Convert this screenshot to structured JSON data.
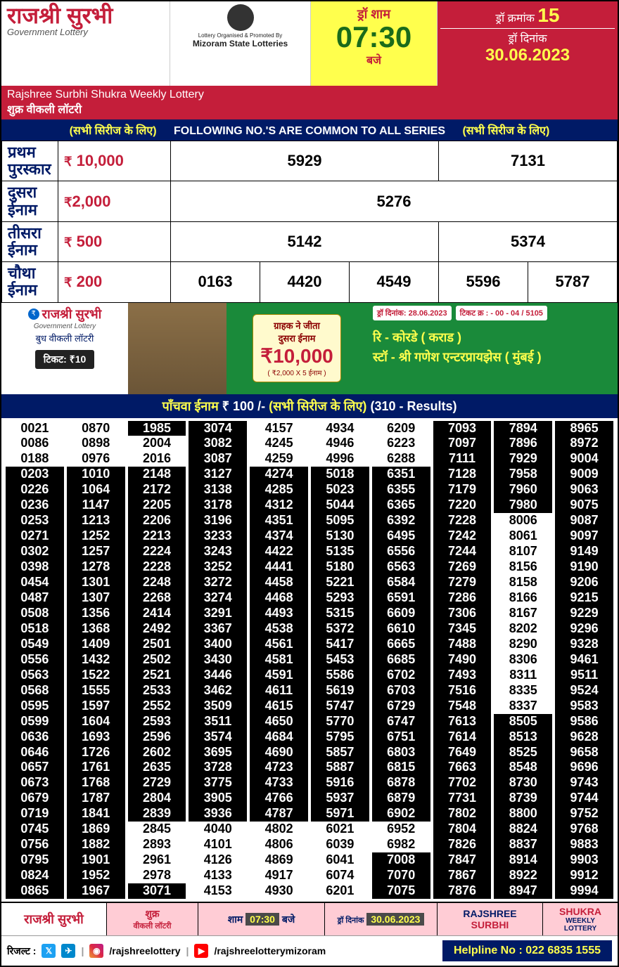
{
  "header": {
    "title_hindi": "राजश्री सुरभी",
    "gov_lottery": "Government Lottery",
    "sub_en": "Rajshree Surbhi Shukra Weekly Lottery",
    "sub_hi": "शुक्र वीकली लॉटरी",
    "org_text": "Lottery Organised & Promoted By",
    "org_name": "Mizoram State Lotteries",
    "draw_sham": "ड्रॉ शाम",
    "draw_time": "07:30",
    "baje": "बजे",
    "draw_no_label": "ड्रॉ क्रमांक",
    "draw_no": "15",
    "draw_date_label": "ड्रॉ दिनांक",
    "draw_date": "30.06.2023"
  },
  "common_bar": {
    "left": "(सभी सिरीज के लिए)",
    "mid": "FOLLOWING NO.'S ARE COMMON TO ALL SERIES",
    "right": "(सभी सिरीज के लिए)"
  },
  "prizes": {
    "first": {
      "label": "प्रथम पुरस्कार",
      "amt": "10,000",
      "nums": [
        "5929",
        "7131"
      ]
    },
    "second": {
      "label": "दुसरा ईनाम",
      "amt": "2,000",
      "nums": [
        "5276"
      ]
    },
    "third": {
      "label": "तीसरा ईनाम",
      "amt": "500",
      "nums": [
        "5142",
        "5374"
      ]
    },
    "fourth": {
      "label": "चौथा ईनाम",
      "amt": "200",
      "nums": [
        "0163",
        "4420",
        "4549",
        "5596",
        "5787"
      ]
    }
  },
  "winner": {
    "logo": "राजश्री सुरभी",
    "gov": "Government Lottery",
    "day": "बुध वीकली लॉटरी",
    "ticket": "टिकट: ₹10",
    "prize_t1": "ग्राहक ने जीता",
    "prize_t2": "दुसरा ईनाम",
    "prize_amt": "₹10,000",
    "prize_sub": "( ₹2,000 X 5 ईनाम )",
    "info_date": "ड्रॉ दिनांक: 28.06.2023",
    "info_ticket": "टिकट क्र : - 00 - 04 / 5105",
    "dealer1": "रि - कोरडे ( कराड )",
    "dealer2": "स्टॉ -   श्री गणेश एन्टरप्रायझेस ( मुंबई )"
  },
  "fifth": {
    "label": "पाँचवा ईनाम",
    "amt": "₹ 100 /-",
    "series": "(सभी सिरीज के लिए)",
    "count": "(310 - Results)",
    "columns": [
      [
        "0021",
        "0086",
        "0188",
        "0203",
        "0226",
        "0236",
        "0253",
        "0271",
        "0302",
        "0398",
        "0454",
        "0487",
        "0508",
        "0518",
        "0549",
        "0556",
        "0563",
        "0568",
        "0595",
        "0599",
        "0636",
        "0646",
        "0657",
        "0673",
        "0679",
        "0719",
        "0745",
        "0756",
        "0795",
        "0824",
        "0865"
      ],
      [
        "0870",
        "0898",
        "0976",
        "1010",
        "1064",
        "1147",
        "1213",
        "1252",
        "1257",
        "1278",
        "1301",
        "1307",
        "1356",
        "1368",
        "1409",
        "1432",
        "1522",
        "1555",
        "1597",
        "1604",
        "1693",
        "1726",
        "1761",
        "1768",
        "1787",
        "1841",
        "1869",
        "1882",
        "1901",
        "1952",
        "1967"
      ],
      [
        "1985",
        "2004",
        "2016",
        "2148",
        "2172",
        "2205",
        "2206",
        "2213",
        "2224",
        "2228",
        "2248",
        "2268",
        "2414",
        "2492",
        "2501",
        "2502",
        "2521",
        "2533",
        "2552",
        "2593",
        "2596",
        "2602",
        "2635",
        "2729",
        "2804",
        "2839",
        "2845",
        "2893",
        "2961",
        "2978",
        "3071"
      ],
      [
        "3074",
        "3082",
        "3087",
        "3127",
        "3138",
        "3178",
        "3196",
        "3233",
        "3243",
        "3252",
        "3272",
        "3274",
        "3291",
        "3367",
        "3400",
        "3430",
        "3446",
        "3462",
        "3509",
        "3511",
        "3574",
        "3695",
        "3728",
        "3775",
        "3905",
        "3936",
        "4040",
        "4101",
        "4126",
        "4133",
        "4153"
      ],
      [
        "4157",
        "4245",
        "4259",
        "4274",
        "4285",
        "4312",
        "4351",
        "4374",
        "4422",
        "4441",
        "4458",
        "4468",
        "4493",
        "4538",
        "4561",
        "4581",
        "4591",
        "4611",
        "4615",
        "4650",
        "4684",
        "4690",
        "4723",
        "4733",
        "4766",
        "4787",
        "4802",
        "4806",
        "4869",
        "4917",
        "4930"
      ],
      [
        "4934",
        "4946",
        "4996",
        "5018",
        "5023",
        "5044",
        "5095",
        "5130",
        "5135",
        "5180",
        "5221",
        "5293",
        "5315",
        "5372",
        "5417",
        "5453",
        "5586",
        "5619",
        "5747",
        "5770",
        "5795",
        "5857",
        "5887",
        "5916",
        "5937",
        "5971",
        "6021",
        "6039",
        "6041",
        "6074",
        "6201"
      ],
      [
        "6209",
        "6223",
        "6288",
        "6351",
        "6355",
        "6365",
        "6392",
        "6495",
        "6556",
        "6563",
        "6584",
        "6591",
        "6609",
        "6610",
        "6665",
        "6685",
        "6702",
        "6703",
        "6729",
        "6747",
        "6751",
        "6803",
        "6815",
        "6878",
        "6879",
        "6902",
        "6952",
        "6982",
        "7008",
        "7070",
        "7075"
      ],
      [
        "7093",
        "7097",
        "7111",
        "7128",
        "7179",
        "7220",
        "7228",
        "7242",
        "7244",
        "7269",
        "7279",
        "7286",
        "7306",
        "7345",
        "7488",
        "7490",
        "7493",
        "7516",
        "7548",
        "7613",
        "7614",
        "7649",
        "7663",
        "7702",
        "7731",
        "7802",
        "7804",
        "7826",
        "7847",
        "7867",
        "7876"
      ],
      [
        "7894",
        "7896",
        "7929",
        "7958",
        "7960",
        "7980",
        "8006",
        "8061",
        "8107",
        "8156",
        "8158",
        "8166",
        "8167",
        "8202",
        "8290",
        "8306",
        "8311",
        "8335",
        "8337",
        "8505",
        "8513",
        "8525",
        "8548",
        "8730",
        "8739",
        "8800",
        "8824",
        "8837",
        "8914",
        "8922",
        "8947"
      ],
      [
        "8965",
        "8972",
        "9004",
        "9009",
        "9063",
        "9075",
        "9087",
        "9097",
        "9149",
        "9190",
        "9206",
        "9215",
        "9229",
        "9296",
        "9328",
        "9461",
        "9511",
        "9524",
        "9583",
        "9586",
        "9628",
        "9658",
        "9696",
        "9743",
        "9744",
        "9752",
        "9768",
        "9883",
        "9903",
        "9912",
        "9994"
      ]
    ],
    "inverted": {
      "0": [
        3,
        4,
        5,
        6,
        7,
        8,
        9,
        10,
        11,
        12,
        13,
        14,
        15,
        16,
        17,
        18,
        19,
        20,
        21,
        22,
        23,
        24,
        25,
        26,
        27,
        28,
        29,
        30
      ],
      "1": [
        3,
        4,
        5,
        6,
        7,
        8,
        9,
        10,
        11,
        12,
        13,
        14,
        15,
        16,
        17,
        18,
        19,
        20,
        21,
        22,
        23,
        24,
        25,
        26,
        27,
        28,
        29,
        30
      ],
      "2": [
        0,
        3,
        4,
        5,
        6,
        7,
        8,
        9,
        10,
        11,
        12,
        13,
        14,
        15,
        16,
        17,
        18,
        19,
        20,
        21,
        22,
        23,
        24,
        25,
        30
      ],
      "3": [
        0,
        1,
        2,
        3,
        4,
        5,
        6,
        7,
        8,
        9,
        10,
        11,
        12,
        13,
        14,
        15,
        16,
        17,
        18,
        19,
        20,
        21,
        22,
        23,
        24,
        25
      ],
      "4": [
        3,
        4,
        5,
        6,
        7,
        8,
        9,
        10,
        11,
        12,
        13,
        14,
        15,
        16,
        17,
        18,
        19,
        20,
        21,
        22,
        23,
        24,
        25
      ],
      "5": [
        3,
        4,
        5,
        6,
        7,
        8,
        9,
        10,
        11,
        12,
        13,
        14,
        15,
        16,
        17,
        18,
        19,
        20,
        21,
        22,
        23,
        24,
        25
      ],
      "6": [
        3,
        4,
        5,
        6,
        7,
        8,
        9,
        10,
        11,
        12,
        13,
        14,
        15,
        16,
        17,
        18,
        19,
        20,
        21,
        22,
        23,
        24,
        25,
        28,
        29,
        30
      ],
      "7": [
        0,
        1,
        2,
        3,
        4,
        5,
        6,
        7,
        8,
        9,
        10,
        11,
        12,
        13,
        14,
        15,
        16,
        17,
        18,
        19,
        20,
        21,
        22,
        23,
        24,
        25,
        26,
        27,
        28,
        29,
        30
      ],
      "8": [
        0,
        1,
        2,
        3,
        4,
        5,
        19,
        20,
        21,
        22,
        23,
        24,
        25,
        26,
        27,
        28,
        29,
        30
      ],
      "9": [
        0,
        1,
        2,
        3,
        4,
        5,
        6,
        7,
        8,
        9,
        10,
        11,
        12,
        13,
        14,
        15,
        16,
        17,
        18,
        19,
        20,
        21,
        22,
        23,
        24,
        25,
        26,
        27,
        28,
        29,
        30
      ]
    }
  },
  "footer": {
    "c1": "राजश्री सुरभी",
    "c2a": "शुक्र",
    "c2b": "वीकली लॉटरी",
    "c3a": "शाम",
    "c3b": "07:30",
    "c3c": "बजे",
    "c4a": "ड्रॉ दिनांक",
    "c4b": "30.06.2023",
    "c5a": "RAJSHREE",
    "c5b": "SURBHI",
    "c6a": "SHUKRA",
    "c6b": "WEEKLY LOTTERY"
  },
  "social": {
    "result": "रिजल्ट :",
    "handle1": "/rajshreelottery",
    "handle2": "/rajshreelotterymizoram",
    "helpline": "Helpline No : 022 6835 1555"
  }
}
